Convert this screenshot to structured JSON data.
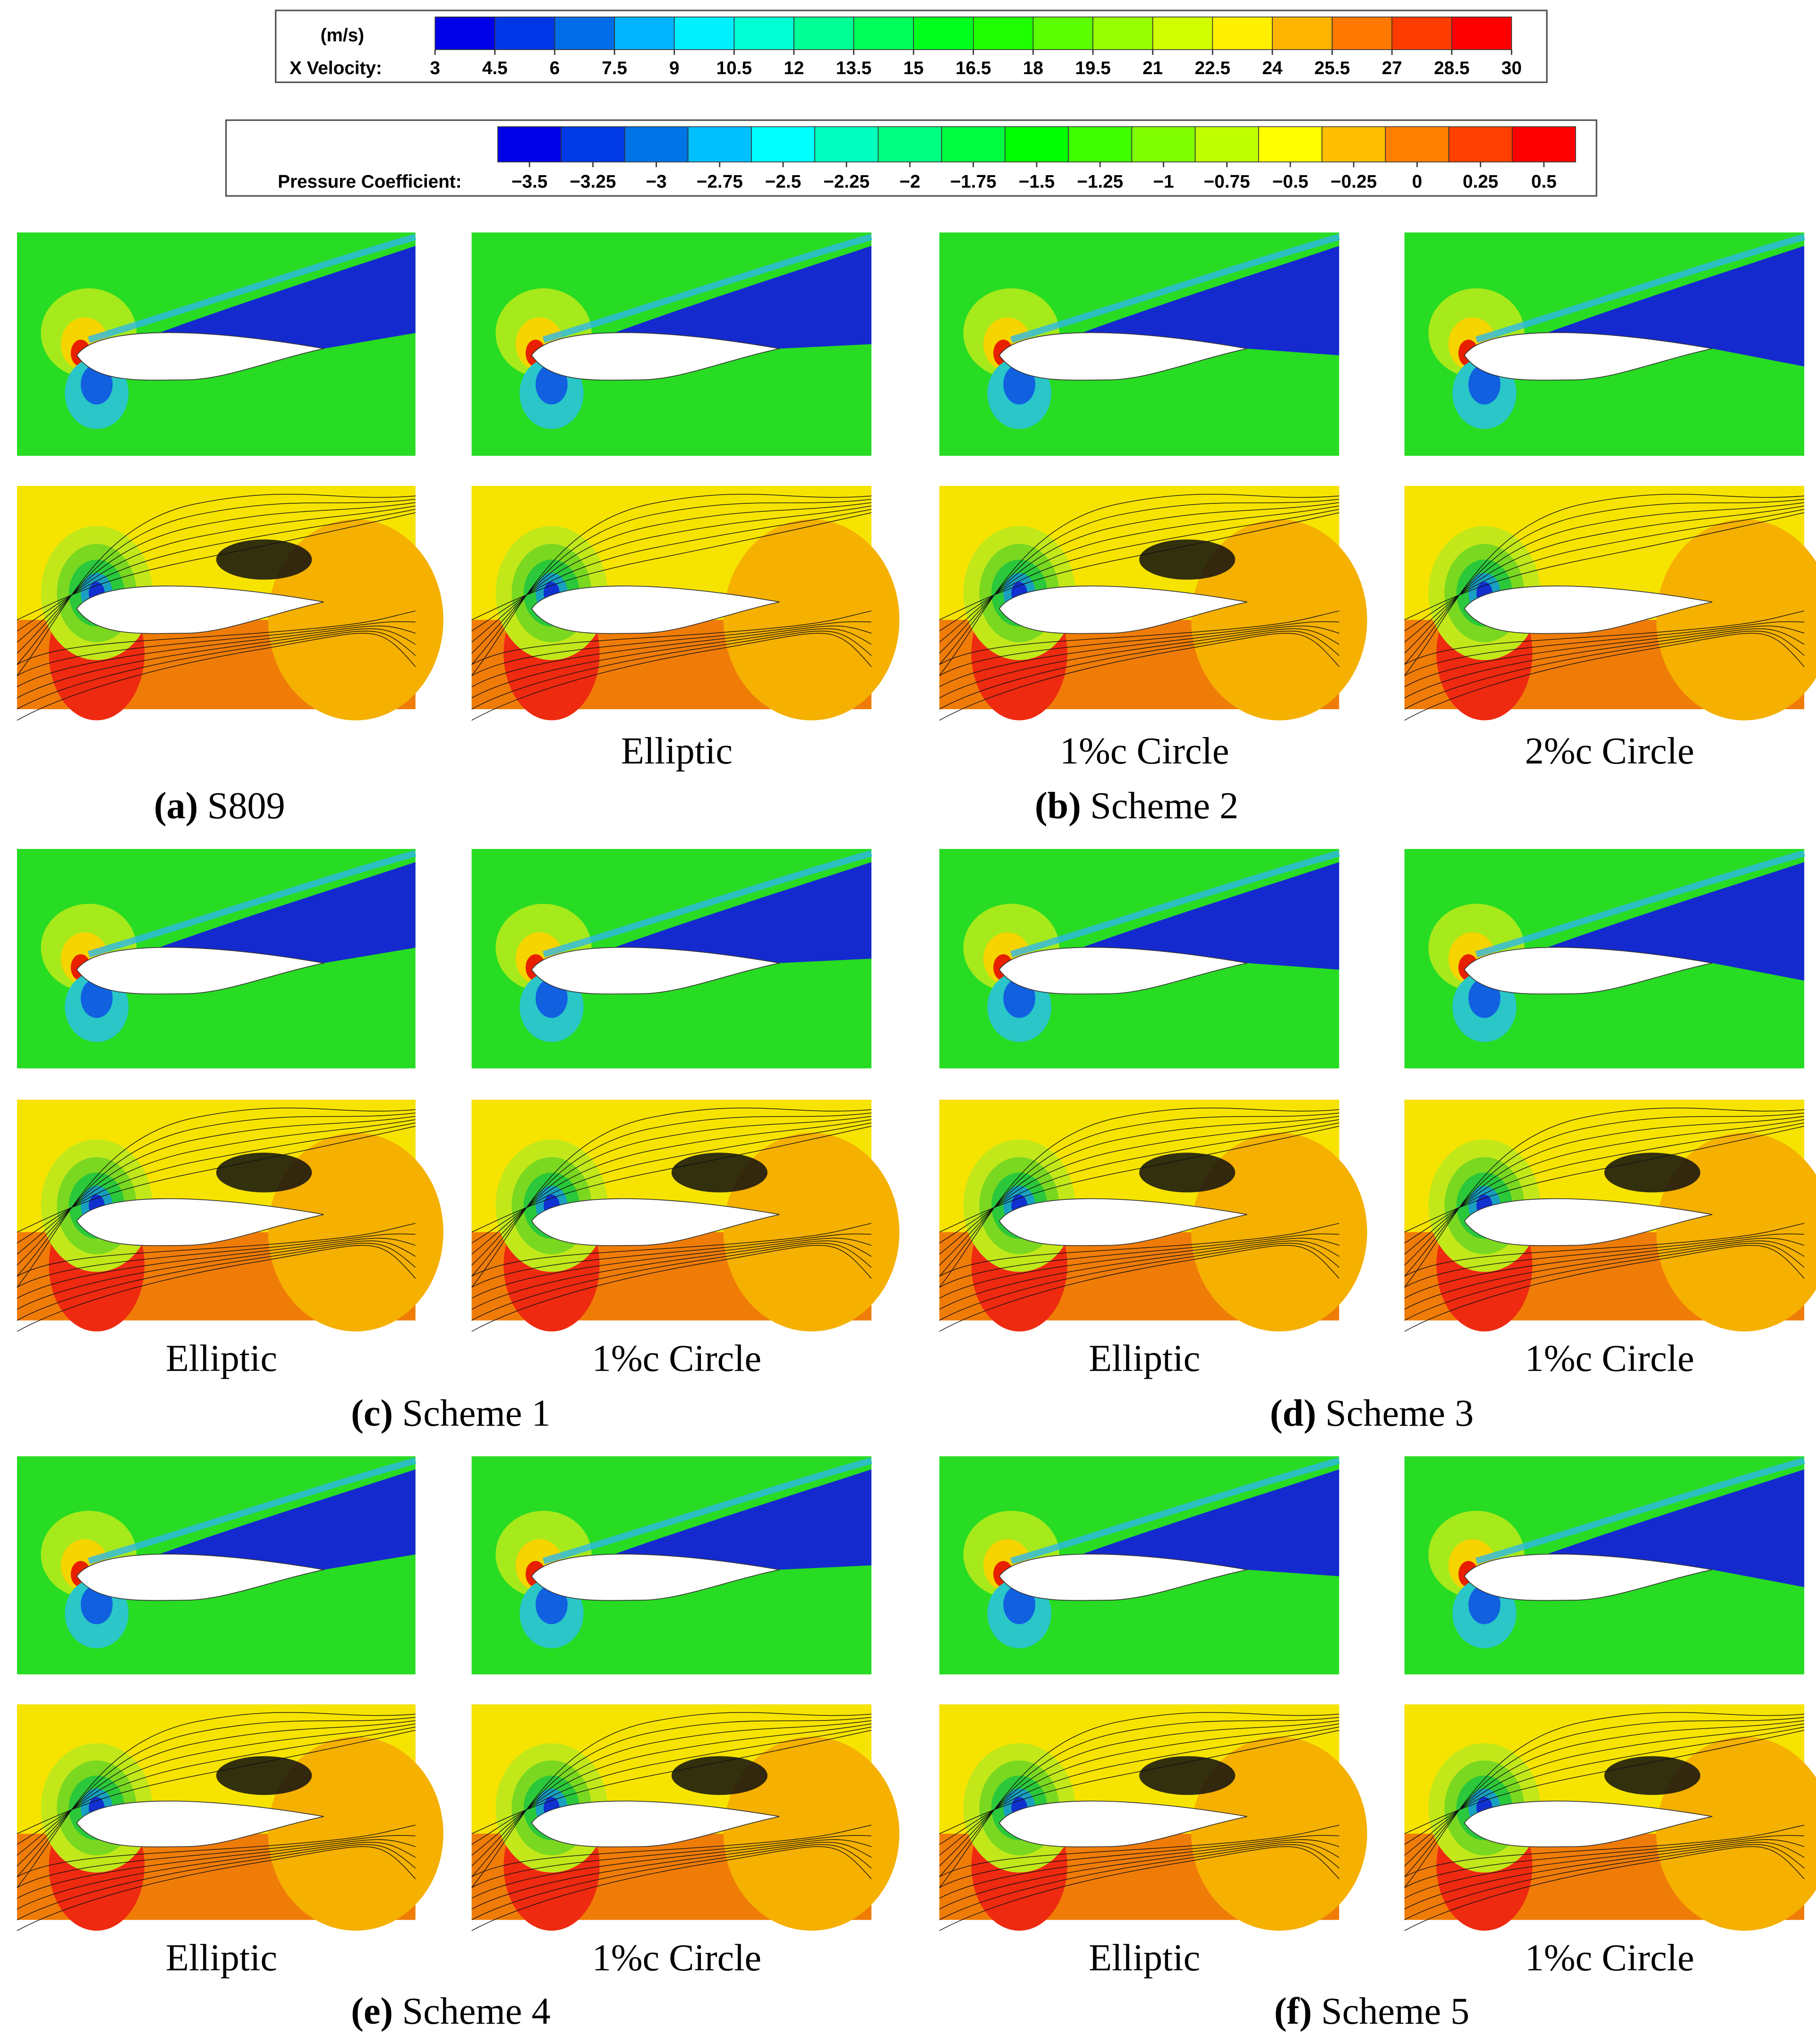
{
  "colorbars": [
    {
      "unit": "(m/s)",
      "label": "X Velocity:",
      "ticks": [
        3,
        4.5,
        6,
        7.5,
        9,
        10.5,
        12,
        13.5,
        15,
        16.5,
        18,
        19.5,
        21,
        22.5,
        24,
        25.5,
        27,
        28.5,
        30
      ]
    },
    {
      "label": "Pressure Coefficient:",
      "ticks": [
        {
          "value": -3.5,
          "label": "−3.5"
        },
        {
          "value": -3.25,
          "label": "−3.25"
        },
        {
          "value": -3,
          "label": "−3"
        },
        {
          "value": -2.75,
          "label": "−2.75"
        },
        {
          "value": -2.5,
          "label": "−2.5"
        },
        {
          "value": -2.25,
          "label": "−2.25"
        },
        {
          "value": -2,
          "label": "−2"
        },
        {
          "value": -1.75,
          "label": "−1.75"
        },
        {
          "value": -1.5,
          "label": "−1.5"
        },
        {
          "value": -1.25,
          "label": "−1.25"
        },
        {
          "value": -1,
          "label": "−1"
        },
        {
          "value": -0.75,
          "label": "−0.75"
        },
        {
          "value": -0.5,
          "label": "−0.5"
        },
        {
          "value": -0.25,
          "label": "−0.25"
        },
        0,
        0.25,
        0.5
      ]
    }
  ],
  "subfigures": [
    {
      "tag": "(a)",
      "name": "S809"
    },
    {
      "tag": "(b)",
      "name": "Scheme 2",
      "panels": [
        "Elliptic",
        "1%c Circle",
        "2%c Circle"
      ]
    },
    {
      "tag": "(c)",
      "name": "Scheme 1",
      "panels": [
        "Elliptic",
        "1%c Circle"
      ]
    },
    {
      "tag": "(d)",
      "name": "Scheme 3",
      "panels": [
        "Elliptic",
        "1%c Circle"
      ]
    },
    {
      "tag": "(e)",
      "name": "Scheme 4",
      "panels": [
        "Elliptic",
        "1%c Circle"
      ]
    },
    {
      "tag": "(f)",
      "name": "Scheme 5",
      "panels": [
        "Elliptic",
        "1%c Circle"
      ]
    }
  ]
}
